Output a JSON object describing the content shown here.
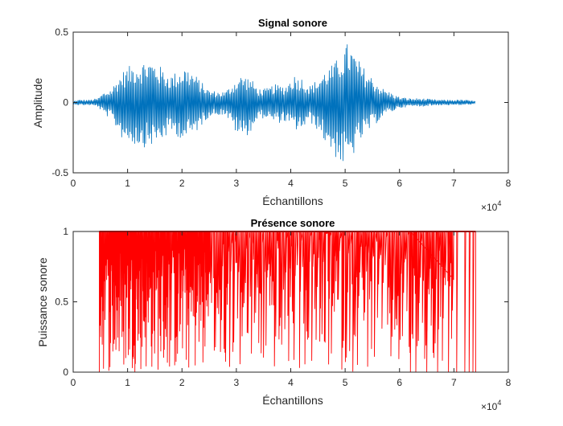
{
  "chart_data": [
    {
      "type": "line",
      "title": "Signal sonore",
      "xlabel": "Échantillons",
      "ylabel": "Amplitude",
      "xlim": [
        0,
        80000
      ],
      "ylim": [
        -0.5,
        0.5
      ],
      "x_tick_labels": [
        "0",
        "1",
        "2",
        "3",
        "4",
        "5",
        "6",
        "7",
        "8"
      ],
      "y_tick_labels": [
        "-0.5",
        "0",
        "0.5"
      ],
      "x_exponent_label": "×10",
      "x_exponent_power": "4",
      "grid": false,
      "color": "#0072BD",
      "signal_length": 74000,
      "envelope": {
        "x": [
          0,
          1000,
          3000,
          4500,
          5500,
          7000,
          9000,
          11000,
          13000,
          14000,
          15500,
          17000,
          18000,
          19000,
          20500,
          22000,
          23500,
          25000,
          26500,
          28000,
          30000,
          31000,
          32500,
          34000,
          35500,
          37000,
          39000,
          40500,
          42000,
          43500,
          45000,
          46500,
          48000,
          49500,
          50500,
          51500,
          53000,
          55000,
          57000,
          58500,
          60000,
          62000,
          64000,
          67000,
          70000,
          72000,
          74000
        ],
        "upper": [
          0.01,
          0.02,
          0.02,
          0.03,
          0.07,
          0.1,
          0.22,
          0.28,
          0.3,
          0.31,
          0.28,
          0.22,
          0.2,
          0.22,
          0.26,
          0.22,
          0.15,
          0.09,
          0.08,
          0.08,
          0.17,
          0.2,
          0.18,
          0.1,
          0.1,
          0.13,
          0.12,
          0.2,
          0.18,
          0.12,
          0.17,
          0.24,
          0.28,
          0.37,
          0.43,
          0.37,
          0.27,
          0.18,
          0.1,
          0.07,
          0.04,
          0.03,
          0.03,
          0.02,
          0.02,
          0.02,
          0.01
        ],
        "lower": [
          -0.01,
          -0.02,
          -0.02,
          -0.03,
          -0.08,
          -0.12,
          -0.26,
          -0.3,
          -0.32,
          -0.31,
          -0.3,
          -0.25,
          -0.22,
          -0.24,
          -0.27,
          -0.24,
          -0.17,
          -0.1,
          -0.09,
          -0.09,
          -0.22,
          -0.26,
          -0.22,
          -0.12,
          -0.11,
          -0.15,
          -0.14,
          -0.2,
          -0.2,
          -0.14,
          -0.2,
          -0.3,
          -0.38,
          -0.46,
          -0.45,
          -0.38,
          -0.27,
          -0.18,
          -0.1,
          -0.07,
          -0.04,
          -0.03,
          -0.03,
          -0.02,
          -0.02,
          -0.02,
          -0.01
        ]
      }
    },
    {
      "type": "line",
      "title": "Présence sonore",
      "xlabel": "Échantillons",
      "ylabel": "Puissance sonore",
      "xlim": [
        0,
        80000
      ],
      "ylim": [
        0,
        1
      ],
      "x_tick_labels": [
        "0",
        "1",
        "2",
        "3",
        "4",
        "5",
        "6",
        "7",
        "8"
      ],
      "y_tick_labels": [
        "0",
        "0.5",
        "1"
      ],
      "x_exponent_label": "×10",
      "x_exponent_power": "4",
      "grid": false,
      "color": "#FF0000",
      "binary_values": [
        0,
        1
      ],
      "signal_length": 74000,
      "silent_before": 4800,
      "silent_after": 74000,
      "dense_region": [
        4800,
        25000
      ],
      "sparse_region": [
        25000,
        70000
      ],
      "tail_bursts": [
        62000,
        63000,
        65000,
        67000,
        69000,
        70500,
        72000,
        72800,
        73500
      ]
    }
  ]
}
